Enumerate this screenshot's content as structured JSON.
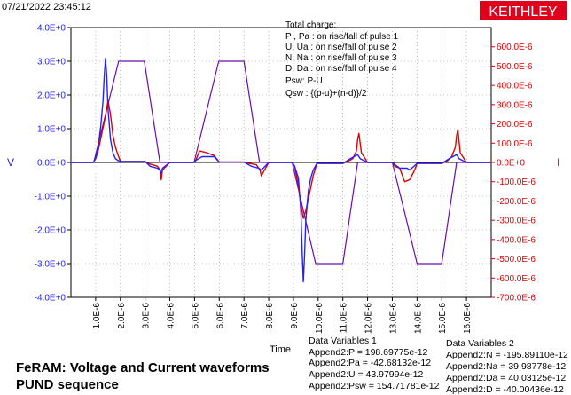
{
  "timestamp": "07/21/2022 23:45:12",
  "brand": "KEITHLEY",
  "legend": {
    "title": "Total charge:",
    "lines": [
      "P , Pa  :  on rise/fall of pulse 1",
      "U, Ua   :  on rise/fall of pulse 2",
      "N, Na   :  on rise/fall of pulse 3",
      "D, Da   :  on rise/fall of pulse 4",
      "Psw:  P-U",
      "Qsw :  {(p-u)+(n-d)}/2"
    ]
  },
  "footer": {
    "line1": "FeRAM: Voltage and Current waveforms",
    "line2": "PUND sequence"
  },
  "data_vars_1": {
    "title": "Data Variables 1",
    "items": [
      "Append2:P = 198.69775e-12",
      "Append2:Pa = -42.68132e-12",
      "Append2:U = 43.97994e-12",
      "Append2:Psw = 154.71781e-12"
    ]
  },
  "data_vars_2": {
    "title": "Data Variables 2",
    "items": [
      "Append2:N = -195.89110e-12",
      "Append2:Na = 39.98778e-12",
      "Append2:Da = 40.03125e-12",
      "Append2:D = -40.00436e-12"
    ]
  },
  "chart_data": {
    "type": "line",
    "xlabel": "Time",
    "ylabel_left": "V",
    "ylabel_right": "I",
    "xlim": [
      0,
      1.7e-05
    ],
    "ylim_left": [
      -4,
      4
    ],
    "ylim_right": [
      -0.0007,
      0.0007
    ],
    "x_ticks": [
      "1.0E-6",
      "2.0E-6",
      "3.0E-6",
      "4.0E-6",
      "5.0E-6",
      "6.0E-6",
      "7.0E-6",
      "8.0E-6",
      "9.0E-6",
      "10.0E-6",
      "11.0E-6",
      "12.0E-6",
      "13.0E-6",
      "14.0E-6",
      "15.0E-6",
      "16.0E-6"
    ],
    "y_left_ticks": [
      "4.0E+0",
      "3.0E+0",
      "2.0E+0",
      "1.0E+0",
      "0.0E+0",
      "-1.0E+0",
      "-2.0E+0",
      "-3.0E+0",
      "-4.0E+0"
    ],
    "y_right_ticks": [
      "600.0E-6",
      "500.0E-6",
      "400.0E-6",
      "300.0E-6",
      "200.0E-6",
      "100.0E-6",
      "0.0E+0",
      "-100.0E-6",
      "-200.0E-6",
      "-300.0E-6",
      "-400.0E-6",
      "-500.0E-6",
      "-600.0E-6",
      "-700.0E-6"
    ],
    "colors": {
      "voltage": "#6a0dad",
      "current": "#e00000",
      "current_blue": "#2222ff",
      "brand_bg": "#e0001b"
    },
    "series": [
      {
        "axis": "left",
        "x": [
          0,
          9.2e-07,
          1.93e-06,
          2.97e-06,
          3.6e-06,
          4.98e-06,
          5.98e-06,
          7e-06,
          7.63e-06,
          8.95e-06,
          9.9e-06,
          1.1e-05,
          1.16e-05,
          1.3e-05,
          1.4e-05,
          1.5e-05,
          1.56e-05,
          1.7e-05
        ],
        "values": [
          0,
          0,
          3.0,
          3.0,
          0,
          0,
          3.0,
          3.0,
          0,
          0,
          -3.0,
          -3.0,
          0,
          0,
          -3.0,
          -3.0,
          0,
          0
        ]
      },
      {
        "axis": "right",
        "x": [
          0,
          9e-07,
          1e-06,
          1.1e-06,
          1.2e-06,
          1.3e-06,
          1.4e-06,
          1.5e-06,
          1.6e-06,
          1.7e-06,
          1.8e-06,
          1.9e-06,
          2e-06,
          3e-06,
          3.1e-06,
          3.3e-06,
          3.5e-06,
          3.6e-06,
          3.65e-06,
          3.7e-06,
          4e-06,
          4.95e-06,
          5.05e-06,
          5.2e-06,
          5.5e-06,
          5.8e-06,
          6e-06,
          7e-06,
          7.2e-06,
          7.5e-06,
          7.65e-06,
          7.7e-06,
          8e-06,
          8.95e-06,
          9.05e-06,
          9.2e-06,
          9.3e-06,
          9.4e-06,
          9.5e-06,
          9.6e-06,
          9.7e-06,
          9.8e-06,
          9.95e-06,
          1.1e-05,
          1.12e-05,
          1.14e-05,
          1.155e-05,
          1.16e-05,
          1.165e-05,
          1.175e-05,
          1.2e-05,
          1.3e-05,
          1.31e-05,
          1.33e-05,
          1.35e-05,
          1.37e-05,
          1.39e-05,
          1.4e-05,
          1.5e-05,
          1.52e-05,
          1.54e-05,
          1.555e-05,
          1.56e-05,
          1.565e-05,
          1.575e-05,
          1.6e-05,
          1.7e-05
        ],
        "values": [
          0,
          0,
          2e-05,
          6e-05,
          0.00012,
          0.00018,
          0.00024,
          0.00032,
          0.00025,
          0.00014,
          8e-05,
          4e-05,
          5e-06,
          5e-06,
          -5e-06,
          -1.2e-05,
          -2e-05,
          -4e-05,
          -9e-05,
          -4e-05,
          0,
          0,
          1e-05,
          6e-05,
          5e-05,
          3.5e-05,
          2e-06,
          2e-06,
          -5e-06,
          -1.2e-05,
          -4e-05,
          -7e-05,
          0,
          0,
          -2e-05,
          -0.00012,
          -0.00022,
          -0.00029,
          -0.00025,
          -0.00019,
          -0.00013,
          -7e-05,
          -5e-06,
          -5e-06,
          5e-06,
          2e-05,
          6e-05,
          0.00012,
          0.00015,
          5e-05,
          0,
          0,
          -2e-05,
          -3e-05,
          -0.0001,
          -9e-05,
          -4e-05,
          -5e-06,
          -5e-06,
          5e-06,
          3e-05,
          8e-05,
          0.00014,
          0.00017,
          5e-05,
          0,
          0
        ]
      },
      {
        "axis": "right",
        "x": [
          0,
          9e-07,
          1e-06,
          1.1e-06,
          1.2e-06,
          1.3e-06,
          1.35e-06,
          1.4e-06,
          1.45e-06,
          1.5e-06,
          1.6e-06,
          1.7e-06,
          1.8e-06,
          1.9e-06,
          2e-06,
          3e-06,
          3.2e-06,
          3.5e-06,
          3.6e-06,
          3.65e-06,
          3.7e-06,
          4e-06,
          4.95e-06,
          5.05e-06,
          5.3e-06,
          5.8e-06,
          6e-06,
          7e-06,
          7.3e-06,
          7.6e-06,
          7.7e-06,
          8e-06,
          8.95e-06,
          9.05e-06,
          9.2e-06,
          9.3e-06,
          9.35e-06,
          9.4e-06,
          9.45e-06,
          9.5e-06,
          9.6e-06,
          9.7e-06,
          9.8e-06,
          9.95e-06,
          1.1e-05,
          1.13e-05,
          1.16e-05,
          1.17e-05,
          1.2e-05,
          1.3e-05,
          1.33e-05,
          1.36e-05,
          1.37e-05,
          1.4e-05,
          1.5e-05,
          1.53e-05,
          1.56e-05,
          1.57e-05,
          1.6e-05,
          1.7e-05
        ],
        "values": [
          0,
          0,
          2e-05,
          8e-05,
          0.00018,
          0.00032,
          0.00045,
          0.00054,
          0.00045,
          0.00028,
          0.00012,
          5e-05,
          2e-05,
          1e-05,
          5e-06,
          5e-06,
          -2e-05,
          -3e-05,
          -4e-05,
          -6e-05,
          -3e-05,
          0,
          0,
          1e-05,
          3e-05,
          3e-05,
          2e-06,
          2e-06,
          -2e-05,
          -3e-05,
          -4e-05,
          0,
          0,
          -2e-05,
          -8e-05,
          -0.00025,
          -0.00045,
          -0.00062,
          -0.00048,
          -0.0003,
          -0.00015,
          -8e-05,
          -4e-05,
          -5e-06,
          -5e-06,
          2e-05,
          4e-05,
          2e-05,
          0,
          0,
          -3e-05,
          -3e-05,
          -4e-05,
          -5e-06,
          -5e-06,
          2e-05,
          4e-05,
          2e-05,
          0,
          0
        ]
      }
    ]
  }
}
